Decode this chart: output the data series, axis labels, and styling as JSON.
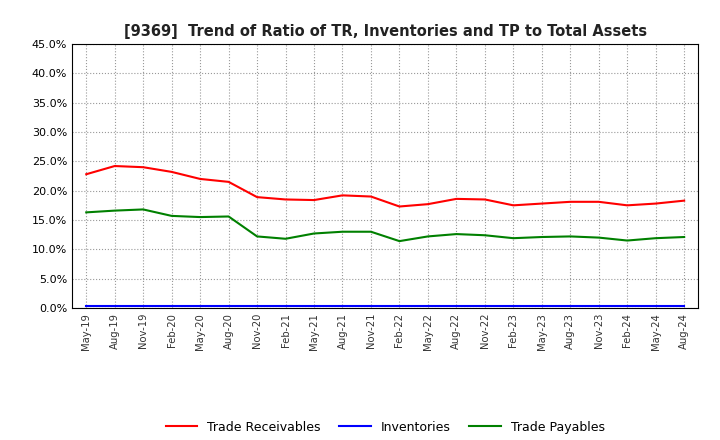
{
  "title": "[9369]  Trend of Ratio of TR, Inventories and TP to Total Assets",
  "x_labels": [
    "May-19",
    "Aug-19",
    "Nov-19",
    "Feb-20",
    "May-20",
    "Aug-20",
    "Nov-20",
    "Feb-21",
    "May-21",
    "Aug-21",
    "Nov-21",
    "Feb-22",
    "May-22",
    "Aug-22",
    "Nov-22",
    "Feb-23",
    "May-23",
    "Aug-23",
    "Nov-23",
    "Feb-24",
    "May-24",
    "Aug-24"
  ],
  "trade_receivables": [
    0.228,
    0.242,
    0.24,
    0.232,
    0.22,
    0.215,
    0.189,
    0.185,
    0.184,
    0.192,
    0.19,
    0.173,
    0.177,
    0.186,
    0.185,
    0.175,
    0.178,
    0.181,
    0.181,
    0.175,
    0.178,
    0.183
  ],
  "inventories": [
    0.004,
    0.004,
    0.004,
    0.004,
    0.004,
    0.004,
    0.004,
    0.004,
    0.004,
    0.004,
    0.004,
    0.004,
    0.004,
    0.004,
    0.004,
    0.004,
    0.004,
    0.004,
    0.004,
    0.004,
    0.004,
    0.004
  ],
  "trade_payables": [
    0.163,
    0.166,
    0.168,
    0.157,
    0.155,
    0.156,
    0.122,
    0.118,
    0.127,
    0.13,
    0.13,
    0.114,
    0.122,
    0.126,
    0.124,
    0.119,
    0.121,
    0.122,
    0.12,
    0.115,
    0.119,
    0.121
  ],
  "tr_color": "#ff0000",
  "inv_color": "#0000ff",
  "tp_color": "#008000",
  "ylim": [
    0.0,
    0.45
  ],
  "yticks": [
    0.0,
    0.05,
    0.1,
    0.15,
    0.2,
    0.25,
    0.3,
    0.35,
    0.4,
    0.45
  ],
  "background_color": "#ffffff",
  "grid_color": "#999999",
  "legend_labels": [
    "Trade Receivables",
    "Inventories",
    "Trade Payables"
  ]
}
